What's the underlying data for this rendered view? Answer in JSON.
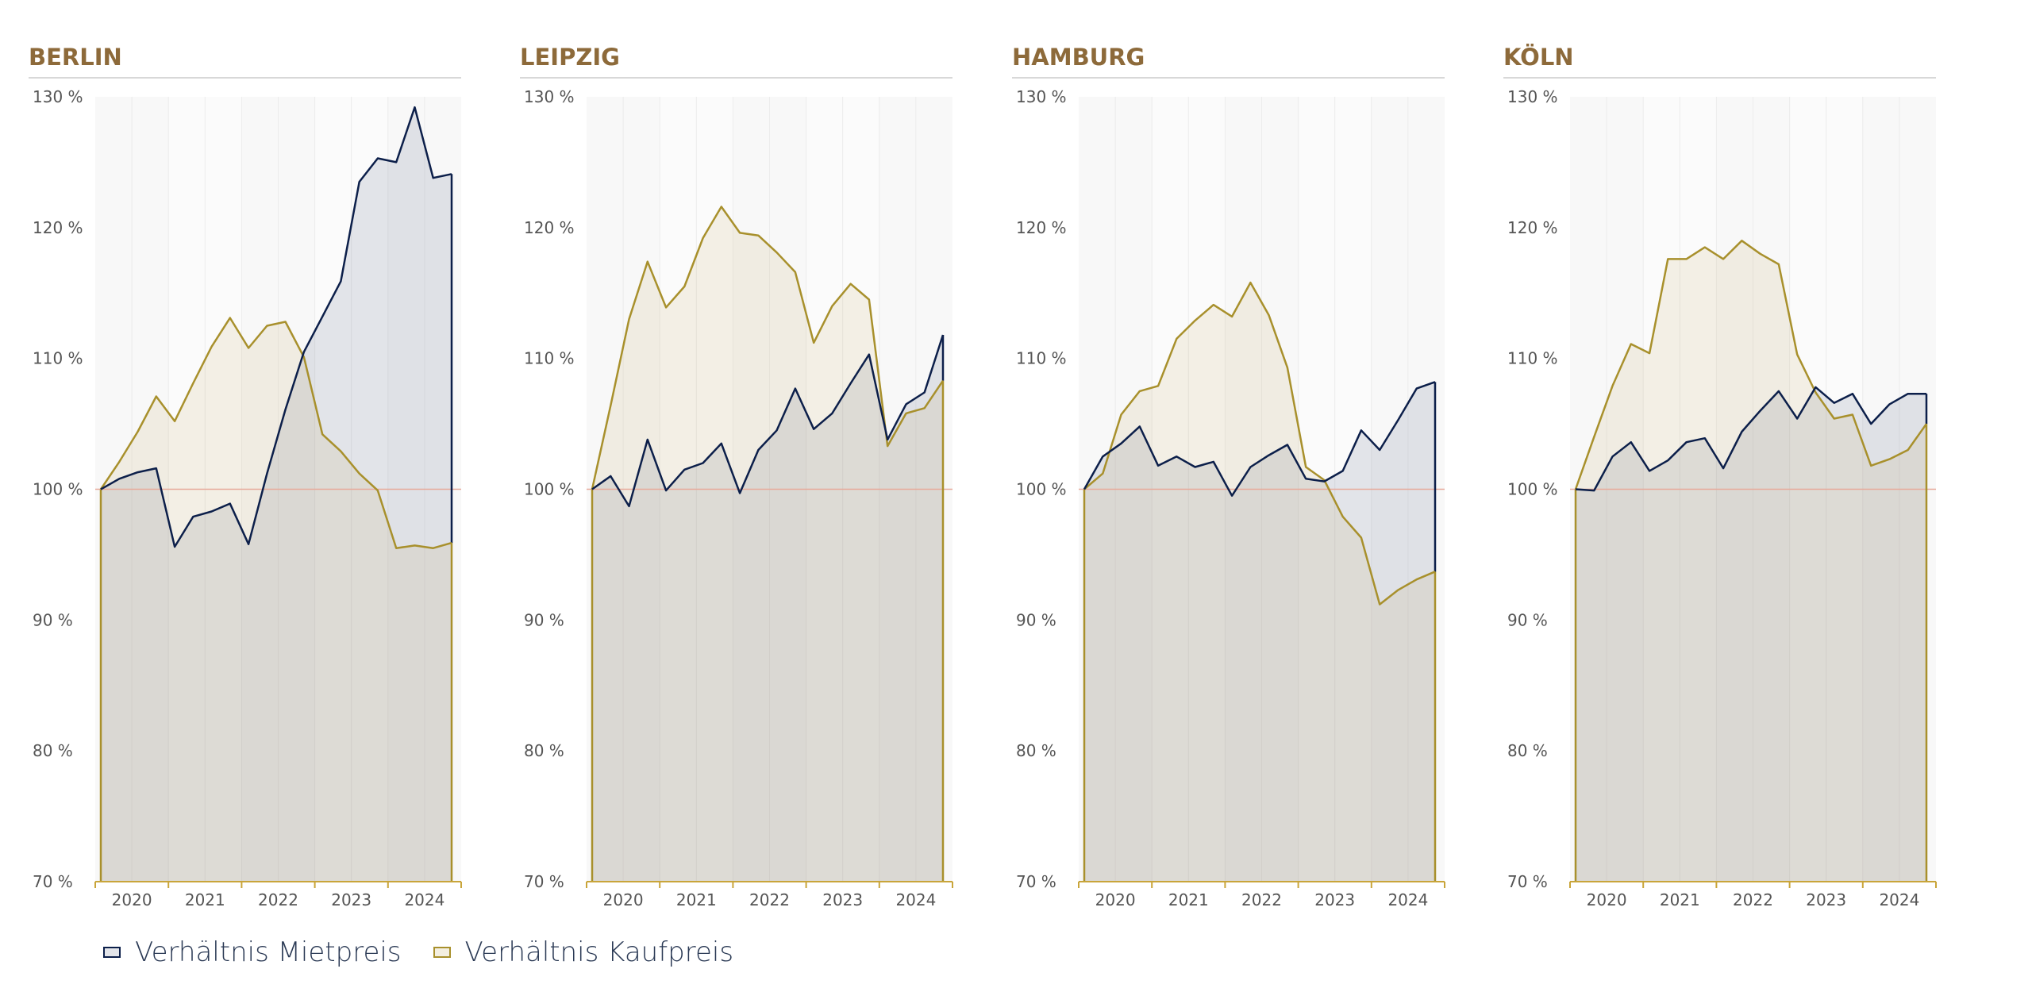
{
  "colors": {
    "miet": "#0c1f4a",
    "kauf": "#a8902c",
    "title": "#8d6a3a",
    "baseline": "#e7a99a",
    "axis": "#c9a53a",
    "tick_label": "#555555"
  },
  "legend": {
    "miet_label": "Verhältnis Mietpreis",
    "kauf_label": "Verhältnis Kaufpreis"
  },
  "chart_data": [
    {
      "type": "area",
      "title": "BERLIN",
      "ylim": [
        70,
        130
      ],
      "yticks": [
        "130 %",
        "120 %",
        "110 %",
        "100 %",
        "90 %",
        "80 %",
        "70 %"
      ],
      "xticks": [
        "2020",
        "2021",
        "2022",
        "2023",
        "2024"
      ],
      "series": [
        {
          "name": "Verhältnis Mietpreis",
          "key": "miet",
          "values": [
            100,
            100.8,
            101.3,
            101.6,
            95.6,
            97.9,
            98.3,
            98.9,
            95.8,
            101.2,
            106.1,
            110.5,
            113.2,
            115.9,
            123.5,
            125.3,
            125.0,
            129.2,
            123.8,
            124.1
          ]
        },
        {
          "name": "Verhältnis Kaufpreis",
          "key": "kauf",
          "values": [
            100,
            102.1,
            104.4,
            107.1,
            105.2,
            108.1,
            110.9,
            113.1,
            110.8,
            112.5,
            112.8,
            110.1,
            104.2,
            102.9,
            101.2,
            99.9,
            95.5,
            95.7,
            95.5,
            95.9
          ]
        }
      ]
    },
    {
      "type": "area",
      "title": "LEIPZIG",
      "ylim": [
        70,
        130
      ],
      "yticks": [
        "130 %",
        "120 %",
        "110 %",
        "100 %",
        "90 %",
        "80 %",
        "70 %"
      ],
      "xticks": [
        "2020",
        "2021",
        "2022",
        "2023",
        "2024"
      ],
      "series": [
        {
          "name": "Verhältnis Mietpreis",
          "key": "miet",
          "values": [
            100,
            101,
            98.7,
            103.8,
            99.9,
            101.5,
            102,
            103.5,
            99.7,
            103,
            104.5,
            107.7,
            104.6,
            105.8,
            108.1,
            110.3,
            103.8,
            106.5,
            107.4,
            111.8
          ]
        },
        {
          "name": "Verhältnis Kaufpreis",
          "key": "kauf",
          "values": [
            100,
            106.4,
            113,
            117.4,
            113.9,
            115.5,
            119.2,
            121.6,
            119.6,
            119.4,
            118.1,
            116.6,
            111.2,
            114,
            115.7,
            114.5,
            103.3,
            105.8,
            106.2,
            108.3
          ]
        }
      ]
    },
    {
      "type": "area",
      "title": "HAMBURG",
      "ylim": [
        70,
        130
      ],
      "yticks": [
        "130 %",
        "120 %",
        "110 %",
        "100 %",
        "90 %",
        "80 %",
        "70 %"
      ],
      "xticks": [
        "2020",
        "2021",
        "2022",
        "2023",
        "2024"
      ],
      "series": [
        {
          "name": "Verhältnis Mietpreis",
          "key": "miet",
          "values": [
            100,
            102.5,
            103.5,
            104.8,
            101.8,
            102.5,
            101.7,
            102.1,
            99.5,
            101.7,
            102.6,
            103.4,
            100.8,
            100.6,
            101.4,
            104.5,
            103,
            105.3,
            107.7,
            108.2
          ]
        },
        {
          "name": "Verhältnis Kaufpreis",
          "key": "kauf",
          "values": [
            100,
            101.2,
            105.7,
            107.5,
            107.9,
            111.5,
            112.9,
            114.1,
            113.2,
            115.8,
            113.3,
            109.3,
            101.7,
            100.7,
            97.9,
            96.3,
            91.2,
            92.3,
            93.1,
            93.7
          ]
        }
      ]
    },
    {
      "type": "area",
      "title": "KÖLN",
      "ylim": [
        70,
        130
      ],
      "yticks": [
        "130 %",
        "120 %",
        "110 %",
        "100 %",
        "90 %",
        "80 %",
        "70 %"
      ],
      "xticks": [
        "2020",
        "2021",
        "2022",
        "2023",
        "2024"
      ],
      "series": [
        {
          "name": "Verhältnis Mietpreis",
          "key": "miet",
          "values": [
            100,
            99.9,
            102.5,
            103.6,
            101.4,
            102.2,
            103.6,
            103.9,
            101.6,
            104.4,
            106,
            107.5,
            105.4,
            107.8,
            106.6,
            107.3,
            105,
            106.5,
            107.3,
            107.3
          ]
        },
        {
          "name": "Verhältnis Kaufpreis",
          "key": "kauf",
          "values": [
            100,
            104,
            107.9,
            111.1,
            110.4,
            117.6,
            117.6,
            118.5,
            117.6,
            119,
            118,
            117.2,
            110.3,
            107.4,
            105.4,
            105.7,
            101.8,
            102.3,
            103,
            105
          ]
        }
      ]
    }
  ]
}
